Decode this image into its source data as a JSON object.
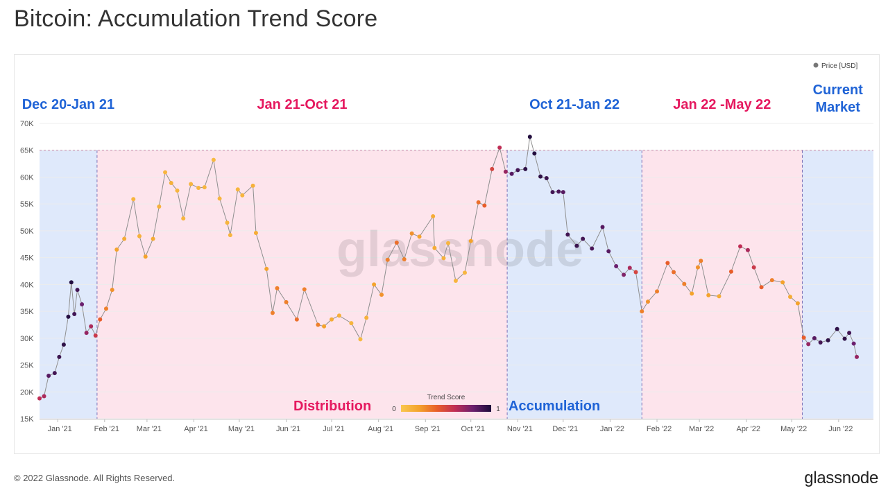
{
  "page": {
    "title": "Bitcoin: Accumulation Trend Score",
    "copyright": "© 2022 Glassnode. All Rights Reserved.",
    "brand": "glassnode",
    "watermark": "glassnode"
  },
  "chart_data": {
    "type": "scatter",
    "subtype": "line-with-colored-points",
    "title": "Bitcoin: Accumulation Trend Score",
    "xlabel": "",
    "ylabel": "",
    "x_range": [
      "2020-12-20",
      "2022-06-24"
    ],
    "ylim": [
      15000,
      70000
    ],
    "y_ticks": [
      {
        "value": 15000,
        "label": "15K"
      },
      {
        "value": 20000,
        "label": "20K"
      },
      {
        "value": 25000,
        "label": "25K"
      },
      {
        "value": 30000,
        "label": "30K"
      },
      {
        "value": 35000,
        "label": "35K"
      },
      {
        "value": 40000,
        "label": "40K"
      },
      {
        "value": 45000,
        "label": "45K"
      },
      {
        "value": 50000,
        "label": "50K"
      },
      {
        "value": 55000,
        "label": "55K"
      },
      {
        "value": 60000,
        "label": "60K"
      },
      {
        "value": 65000,
        "label": "65K"
      },
      {
        "value": 70000,
        "label": "70K"
      }
    ],
    "x_ticks": [
      {
        "date": "2021-01-01",
        "label": "Jan '21"
      },
      {
        "date": "2021-02-01",
        "label": "Feb '21"
      },
      {
        "date": "2021-03-01",
        "label": "Mar '21"
      },
      {
        "date": "2021-04-01",
        "label": "Apr '21"
      },
      {
        "date": "2021-05-01",
        "label": "May '21"
      },
      {
        "date": "2021-06-01",
        "label": "Jun '21"
      },
      {
        "date": "2021-07-01",
        "label": "Jul '21"
      },
      {
        "date": "2021-08-01",
        "label": "Aug '21"
      },
      {
        "date": "2021-09-01",
        "label": "Sep '21"
      },
      {
        "date": "2021-10-01",
        "label": "Oct '21"
      },
      {
        "date": "2021-11-01",
        "label": "Nov '21"
      },
      {
        "date": "2021-12-01",
        "label": "Dec '21"
      },
      {
        "date": "2022-01-01",
        "label": "Jan '22"
      },
      {
        "date": "2022-02-01",
        "label": "Feb '22"
      },
      {
        "date": "2022-03-01",
        "label": "Mar '22"
      },
      {
        "date": "2022-04-01",
        "label": "Apr '22"
      },
      {
        "date": "2022-05-01",
        "label": "May '22"
      },
      {
        "date": "2022-06-01",
        "label": "Jun '22"
      }
    ],
    "legend": {
      "label": "Price [USD]",
      "position": "top-right",
      "color": "#777777"
    },
    "color_scale": {
      "title": "Trend Score",
      "min_label": "0",
      "max_label": "1",
      "stops": [
        "#f9c74f",
        "#f4a32c",
        "#e85d2a",
        "#c02d55",
        "#6b1f6e",
        "#1b0c3a"
      ]
    },
    "regions": [
      {
        "start": "2020-12-20",
        "end": "2021-01-27",
        "label": "Dec 20-Jan 21",
        "kind": "accumulation"
      },
      {
        "start": "2021-01-27",
        "end": "2021-10-25",
        "label": "Jan 21-Oct 21",
        "kind": "distribution"
      },
      {
        "start": "2021-10-25",
        "end": "2022-01-22",
        "label": "Oct 21-Jan 22",
        "kind": "accumulation"
      },
      {
        "start": "2022-01-22",
        "end": "2022-05-08",
        "label": "Jan 22 -May 22",
        "kind": "distribution"
      },
      {
        "start": "2022-05-08",
        "end": "2022-06-24",
        "label": "Current\nMarket",
        "kind": "accumulation"
      }
    ],
    "annotations": [
      {
        "text": "Distribution",
        "color": "#e5195f"
      },
      {
        "text": "Accumulation",
        "color": "#1f63d6"
      }
    ],
    "region_colors": {
      "accumulation": "#dfe9fb",
      "distribution": "#fde4ec",
      "accumulation_text": "#1f63d6",
      "distribution_text": "#e5195f"
    },
    "series": [
      {
        "name": "Price [USD]",
        "points": [
          {
            "date": "2020-12-20",
            "value": 18800,
            "score": 0.6
          },
          {
            "date": "2020-12-23",
            "value": 19200,
            "score": 0.65
          },
          {
            "date": "2020-12-26",
            "value": 23000,
            "score": 0.85
          },
          {
            "date": "2020-12-30",
            "value": 23500,
            "score": 0.9
          },
          {
            "date": "2021-01-02",
            "value": 26500,
            "score": 0.92
          },
          {
            "date": "2021-01-05",
            "value": 28800,
            "score": 0.95
          },
          {
            "date": "2021-01-08",
            "value": 34000,
            "score": 0.97
          },
          {
            "date": "2021-01-10",
            "value": 40400,
            "score": 0.98
          },
          {
            "date": "2021-01-12",
            "value": 34500,
            "score": 0.9
          },
          {
            "date": "2021-01-14",
            "value": 39000,
            "score": 0.9
          },
          {
            "date": "2021-01-17",
            "value": 36300,
            "score": 0.8
          },
          {
            "date": "2021-01-20",
            "value": 31000,
            "score": 0.7
          },
          {
            "date": "2021-01-23",
            "value": 32200,
            "score": 0.65
          },
          {
            "date": "2021-01-26",
            "value": 30500,
            "score": 0.55
          },
          {
            "date": "2021-01-29",
            "value": 33500,
            "score": 0.4
          },
          {
            "date": "2021-02-02",
            "value": 35500,
            "score": 0.3
          },
          {
            "date": "2021-02-06",
            "value": 39000,
            "score": 0.25
          },
          {
            "date": "2021-02-09",
            "value": 46500,
            "score": 0.2
          },
          {
            "date": "2021-02-14",
            "value": 48500,
            "score": 0.15
          },
          {
            "date": "2021-02-20",
            "value": 55900,
            "score": 0.1
          },
          {
            "date": "2021-02-24",
            "value": 49000,
            "score": 0.12
          },
          {
            "date": "2021-02-28",
            "value": 45200,
            "score": 0.2
          },
          {
            "date": "2021-03-05",
            "value": 48500,
            "score": 0.15
          },
          {
            "date": "2021-03-09",
            "value": 54500,
            "score": 0.12
          },
          {
            "date": "2021-03-13",
            "value": 60900,
            "score": 0.1
          },
          {
            "date": "2021-03-17",
            "value": 58900,
            "score": 0.12
          },
          {
            "date": "2021-03-21",
            "value": 57500,
            "score": 0.1
          },
          {
            "date": "2021-03-25",
            "value": 52300,
            "score": 0.1
          },
          {
            "date": "2021-03-30",
            "value": 58700,
            "score": 0.1
          },
          {
            "date": "2021-04-04",
            "value": 58000,
            "score": 0.1
          },
          {
            "date": "2021-04-08",
            "value": 58100,
            "score": 0.1
          },
          {
            "date": "2021-04-14",
            "value": 63200,
            "score": 0.08
          },
          {
            "date": "2021-04-18",
            "value": 56000,
            "score": 0.1
          },
          {
            "date": "2021-04-23",
            "value": 51500,
            "score": 0.1
          },
          {
            "date": "2021-04-25",
            "value": 49200,
            "score": 0.1
          },
          {
            "date": "2021-04-30",
            "value": 57700,
            "score": 0.1
          },
          {
            "date": "2021-05-03",
            "value": 56600,
            "score": 0.1
          },
          {
            "date": "2021-05-10",
            "value": 58400,
            "score": 0.12
          },
          {
            "date": "2021-05-12",
            "value": 49600,
            "score": 0.15
          },
          {
            "date": "2021-05-19",
            "value": 42900,
            "score": 0.2
          },
          {
            "date": "2021-05-23",
            "value": 34700,
            "score": 0.3
          },
          {
            "date": "2021-05-26",
            "value": 39300,
            "score": 0.3
          },
          {
            "date": "2021-06-01",
            "value": 36700,
            "score": 0.3
          },
          {
            "date": "2021-06-08",
            "value": 33500,
            "score": 0.35
          },
          {
            "date": "2021-06-13",
            "value": 39100,
            "score": 0.3
          },
          {
            "date": "2021-06-22",
            "value": 32500,
            "score": 0.3
          },
          {
            "date": "2021-06-26",
            "value": 32200,
            "score": 0.2
          },
          {
            "date": "2021-07-01",
            "value": 33500,
            "score": 0.15
          },
          {
            "date": "2021-07-06",
            "value": 34200,
            "score": 0.12
          },
          {
            "date": "2021-07-14",
            "value": 32800,
            "score": 0.1
          },
          {
            "date": "2021-07-20",
            "value": 29800,
            "score": 0.08
          },
          {
            "date": "2021-07-24",
            "value": 33800,
            "score": 0.12
          },
          {
            "date": "2021-07-29",
            "value": 40000,
            "score": 0.2
          },
          {
            "date": "2021-08-03",
            "value": 38100,
            "score": 0.25
          },
          {
            "date": "2021-08-07",
            "value": 44600,
            "score": 0.3
          },
          {
            "date": "2021-08-13",
            "value": 47800,
            "score": 0.35
          },
          {
            "date": "2021-08-18",
            "value": 44700,
            "score": 0.3
          },
          {
            "date": "2021-08-23",
            "value": 49500,
            "score": 0.25
          },
          {
            "date": "2021-08-28",
            "value": 48900,
            "score": 0.2
          },
          {
            "date": "2021-09-06",
            "value": 52700,
            "score": 0.15
          },
          {
            "date": "2021-09-07",
            "value": 46800,
            "score": 0.15
          },
          {
            "date": "2021-09-13",
            "value": 44900,
            "score": 0.12
          },
          {
            "date": "2021-09-16",
            "value": 47700,
            "score": 0.1
          },
          {
            "date": "2021-09-21",
            "value": 40700,
            "score": 0.1
          },
          {
            "date": "2021-09-27",
            "value": 42200,
            "score": 0.1
          },
          {
            "date": "2021-10-01",
            "value": 48100,
            "score": 0.2
          },
          {
            "date": "2021-10-06",
            "value": 55300,
            "score": 0.35
          },
          {
            "date": "2021-10-10",
            "value": 54700,
            "score": 0.4
          },
          {
            "date": "2021-10-15",
            "value": 61500,
            "score": 0.5
          },
          {
            "date": "2021-10-20",
            "value": 65500,
            "score": 0.6
          },
          {
            "date": "2021-10-24",
            "value": 61000,
            "score": 0.7
          },
          {
            "date": "2021-10-28",
            "value": 60600,
            "score": 0.85
          },
          {
            "date": "2021-11-01",
            "value": 61300,
            "score": 0.9
          },
          {
            "date": "2021-11-06",
            "value": 61500,
            "score": 0.95
          },
          {
            "date": "2021-11-09",
            "value": 67500,
            "score": 0.98
          },
          {
            "date": "2021-11-12",
            "value": 64400,
            "score": 0.98
          },
          {
            "date": "2021-11-16",
            "value": 60100,
            "score": 0.95
          },
          {
            "date": "2021-11-20",
            "value": 59800,
            "score": 0.92
          },
          {
            "date": "2021-11-24",
            "value": 57200,
            "score": 0.9
          },
          {
            "date": "2021-11-28",
            "value": 57300,
            "score": 0.88
          },
          {
            "date": "2021-12-01",
            "value": 57200,
            "score": 0.85
          },
          {
            "date": "2021-12-04",
            "value": 49300,
            "score": 0.9
          },
          {
            "date": "2021-12-10",
            "value": 47200,
            "score": 0.92
          },
          {
            "date": "2021-12-14",
            "value": 48500,
            "score": 0.9
          },
          {
            "date": "2021-12-20",
            "value": 46700,
            "score": 0.88
          },
          {
            "date": "2021-12-27",
            "value": 50700,
            "score": 0.85
          },
          {
            "date": "2021-12-31",
            "value": 46200,
            "score": 0.85
          },
          {
            "date": "2022-01-05",
            "value": 43400,
            "score": 0.8
          },
          {
            "date": "2022-01-10",
            "value": 41800,
            "score": 0.75
          },
          {
            "date": "2022-01-14",
            "value": 43100,
            "score": 0.65
          },
          {
            "date": "2022-01-18",
            "value": 42300,
            "score": 0.5
          },
          {
            "date": "2022-01-22",
            "value": 35000,
            "score": 0.3
          },
          {
            "date": "2022-01-26",
            "value": 36800,
            "score": 0.25
          },
          {
            "date": "2022-02-01",
            "value": 38700,
            "score": 0.3
          },
          {
            "date": "2022-02-08",
            "value": 44000,
            "score": 0.4
          },
          {
            "date": "2022-02-12",
            "value": 42300,
            "score": 0.35
          },
          {
            "date": "2022-02-19",
            "value": 40100,
            "score": 0.3
          },
          {
            "date": "2022-02-24",
            "value": 38300,
            "score": 0.2
          },
          {
            "date": "2022-02-28",
            "value": 43200,
            "score": 0.25
          },
          {
            "date": "2022-03-02",
            "value": 44400,
            "score": 0.3
          },
          {
            "date": "2022-03-07",
            "value": 38000,
            "score": 0.2
          },
          {
            "date": "2022-03-14",
            "value": 37800,
            "score": 0.15
          },
          {
            "date": "2022-03-22",
            "value": 42400,
            "score": 0.4
          },
          {
            "date": "2022-03-28",
            "value": 47100,
            "score": 0.6
          },
          {
            "date": "2022-04-02",
            "value": 46400,
            "score": 0.65
          },
          {
            "date": "2022-04-06",
            "value": 43200,
            "score": 0.55
          },
          {
            "date": "2022-04-11",
            "value": 39500,
            "score": 0.4
          },
          {
            "date": "2022-04-18",
            "value": 40800,
            "score": 0.3
          },
          {
            "date": "2022-04-25",
            "value": 40400,
            "score": 0.2
          },
          {
            "date": "2022-04-30",
            "value": 37700,
            "score": 0.15
          },
          {
            "date": "2022-05-05",
            "value": 36500,
            "score": 0.2
          },
          {
            "date": "2022-05-09",
            "value": 30100,
            "score": 0.4
          },
          {
            "date": "2022-05-12",
            "value": 28900,
            "score": 0.7
          },
          {
            "date": "2022-05-16",
            "value": 30000,
            "score": 0.85
          },
          {
            "date": "2022-05-20",
            "value": 29200,
            "score": 0.9
          },
          {
            "date": "2022-05-25",
            "value": 29600,
            "score": 0.95
          },
          {
            "date": "2022-05-31",
            "value": 31700,
            "score": 0.95
          },
          {
            "date": "2022-06-05",
            "value": 29900,
            "score": 0.95
          },
          {
            "date": "2022-06-08",
            "value": 31000,
            "score": 0.9
          },
          {
            "date": "2022-06-11",
            "value": 29000,
            "score": 0.8
          },
          {
            "date": "2022-06-13",
            "value": 26500,
            "score": 0.7
          }
        ]
      }
    ]
  }
}
